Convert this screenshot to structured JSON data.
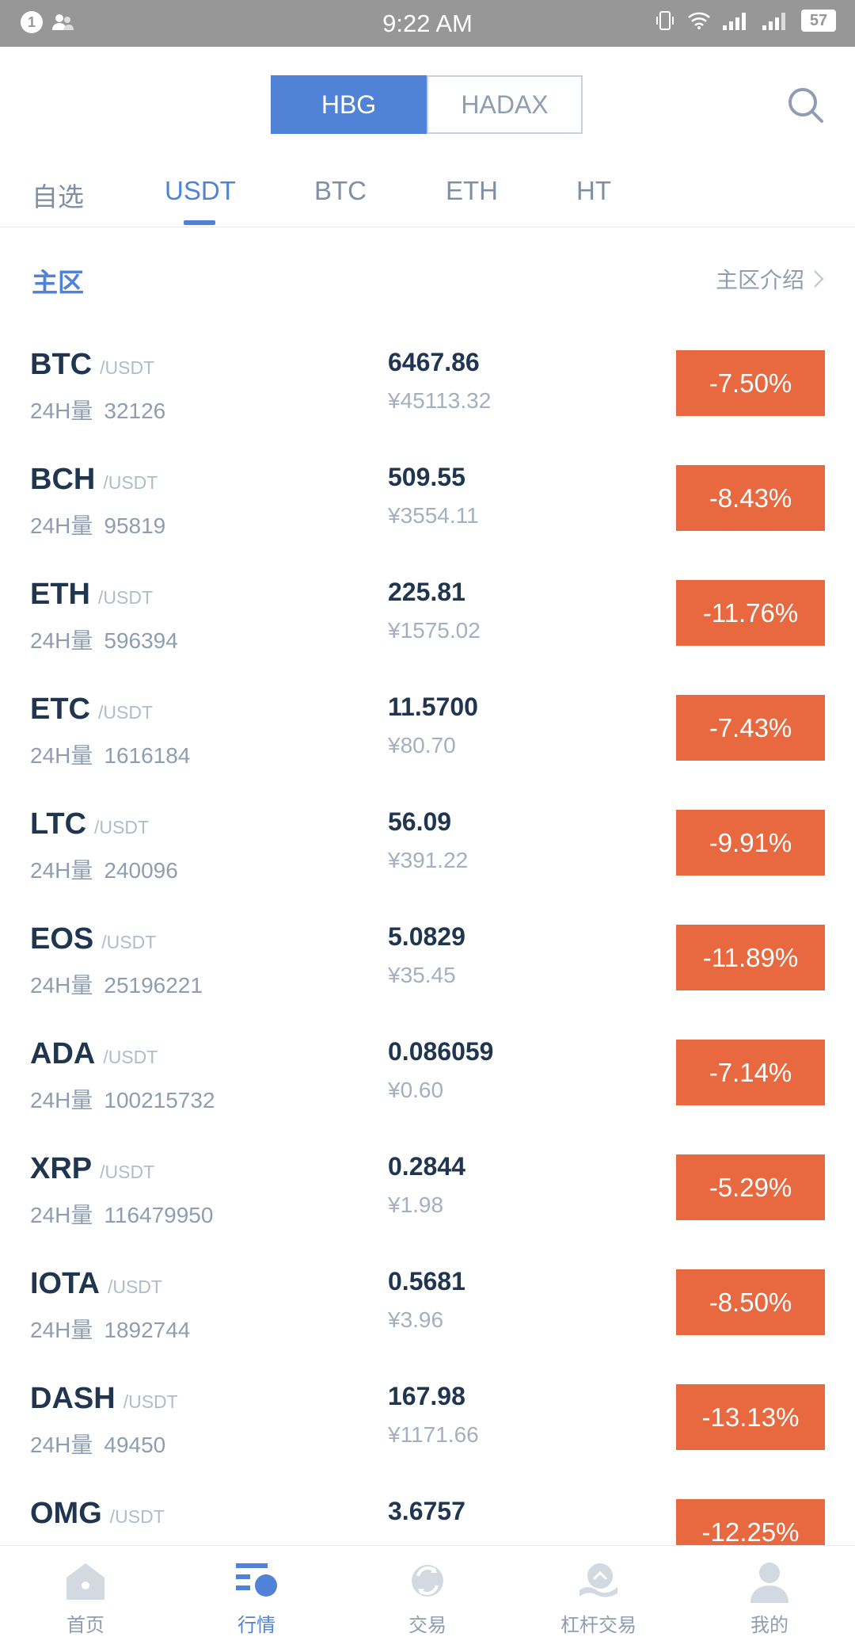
{
  "status_bar": {
    "time": "9:22 AM",
    "notification_count": "1",
    "battery": "57"
  },
  "header": {
    "segments": [
      "HBG",
      "HADAX"
    ]
  },
  "tabs": [
    "自选",
    "USDT",
    "BTC",
    "ETH",
    "HT"
  ],
  "section": {
    "title": "主区",
    "link": "主区介绍"
  },
  "vol_label": "24H量",
  "rows": [
    {
      "symbol": "BTC",
      "quote": "/USDT",
      "volume": "32126",
      "price": "6467.86",
      "cny": "¥45113.32",
      "change": "-7.50%"
    },
    {
      "symbol": "BCH",
      "quote": "/USDT",
      "volume": "95819",
      "price": "509.55",
      "cny": "¥3554.11",
      "change": "-8.43%"
    },
    {
      "symbol": "ETH",
      "quote": "/USDT",
      "volume": "596394",
      "price": "225.81",
      "cny": "¥1575.02",
      "change": "-11.76%"
    },
    {
      "symbol": "ETC",
      "quote": "/USDT",
      "volume": "1616184",
      "price": "11.5700",
      "cny": "¥80.70",
      "change": "-7.43%"
    },
    {
      "symbol": "LTC",
      "quote": "/USDT",
      "volume": "240096",
      "price": "56.09",
      "cny": "¥391.22",
      "change": "-9.91%"
    },
    {
      "symbol": "EOS",
      "quote": "/USDT",
      "volume": "25196221",
      "price": "5.0829",
      "cny": "¥35.45",
      "change": "-11.89%"
    },
    {
      "symbol": "ADA",
      "quote": "/USDT",
      "volume": "100215732",
      "price": "0.086059",
      "cny": "¥0.60",
      "change": "-7.14%"
    },
    {
      "symbol": "XRP",
      "quote": "/USDT",
      "volume": "116479950",
      "price": "0.2844",
      "cny": "¥1.98",
      "change": "-5.29%"
    },
    {
      "symbol": "IOTA",
      "quote": "/USDT",
      "volume": "1892744",
      "price": "0.5681",
      "cny": "¥3.96",
      "change": "-8.50%"
    },
    {
      "symbol": "DASH",
      "quote": "/USDT",
      "volume": "49450",
      "price": "167.98",
      "cny": "¥1171.66",
      "change": "-13.13%"
    },
    {
      "symbol": "OMG",
      "quote": "/USDT",
      "volume": "",
      "price": "3.6757",
      "cny": "",
      "change": "-12.25%"
    }
  ],
  "bottom_nav": [
    {
      "label": "首页",
      "icon": "home-icon"
    },
    {
      "label": "行情",
      "icon": "market-icon"
    },
    {
      "label": "交易",
      "icon": "trade-icon"
    },
    {
      "label": "杠杆交易",
      "icon": "margin-trade-icon"
    },
    {
      "label": "我的",
      "icon": "profile-icon"
    }
  ],
  "colors": {
    "accent": "#5083d8",
    "down": "#e8683f",
    "text_dark": "#1f3550",
    "text_muted": "#8e9eb0"
  }
}
